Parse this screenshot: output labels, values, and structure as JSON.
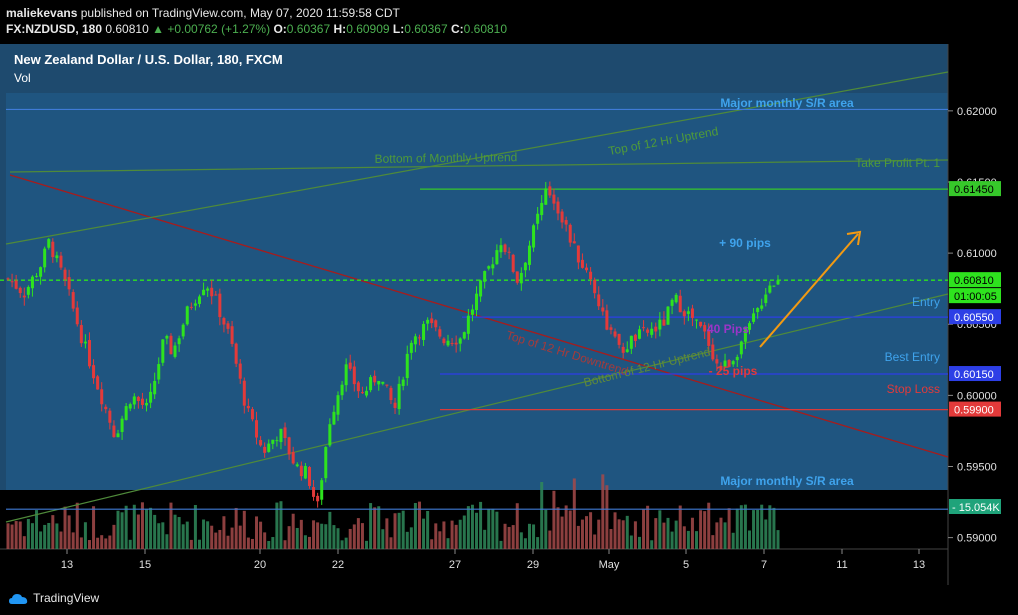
{
  "header": {
    "author": "maliekevans",
    "published_text": "published on TradingView.com, May 07, 2020 11:59:58 CDT",
    "symbol": "FX:NZDUSD, 180",
    "last": "0.60810",
    "change": "+0.00762 (+1.27%)",
    "o_label": "O:",
    "o_val": "0.60367",
    "h_label": "H:",
    "h_val": "0.60909",
    "l_label": "L:",
    "l_val": "0.60367",
    "c_label": "C:",
    "c_val": "0.60810"
  },
  "chart_title": "New Zealand Dollar / U.S. Dollar, 180, FXCM",
  "vol_label": "Vol",
  "footer": {
    "brand": "TradingView"
  },
  "colors": {
    "background": "#1e4a6e",
    "up": "#2ee31e",
    "down": "#e33a3a",
    "sr_line": "#3f7bd6",
    "support": "#4f8a3a",
    "downtrend": "#a61c1c",
    "arrow": "#f29a12"
  },
  "chart_data": {
    "type": "candlestick",
    "title": "New Zealand Dollar / U.S. Dollar, 180, FXCM",
    "y_ticks": [
      "0.62000",
      "0.61500",
      "0.61000",
      "0.60500",
      "0.60000",
      "0.59500",
      "0.59000"
    ],
    "ylim": [
      0.5892,
      0.6247
    ],
    "x_ticks": [
      "13",
      "15",
      "20",
      "22",
      "27",
      "29",
      "May",
      "5",
      "7",
      "11",
      "13"
    ],
    "price_tags": {
      "take_profit": "0.61450",
      "last": "0.60810",
      "countdown": "01:00:05",
      "entry": "0.60550",
      "best_entry": "0.60150",
      "stop_loss": "0.59900",
      "volume": "15.054K"
    },
    "annotations": {
      "major_sr_top": "Major monthly S/R area",
      "major_sr_bottom": "Major monthly S/R area",
      "top_uptrend": "Top of 12 Hr Uptrend",
      "bottom_monthly": "Bottom of Monthly Uptrend",
      "take_profit": "Take Profit Pt. 1",
      "plus90": "+ 90 pips",
      "entry": "Entry",
      "pips40": "40 Pips",
      "best_entry": "Best Entry",
      "minus25": "- 25 pips",
      "stop_loss": "Stop Loss",
      "top_downtrend": "Top of 12 Hr Downtrend",
      "bottom_uptrend": "Bottom of 12 Hr Uptrend"
    },
    "levels": {
      "major_sr_top": 0.6201,
      "major_sr_bottom": 0.592,
      "take_profit": 0.6145,
      "last": 0.6081,
      "entry": 0.6055,
      "best_entry": 0.6015,
      "stop_loss": 0.599
    },
    "close_path": [
      [
        0,
        0.6082
      ],
      [
        10,
        0.6072
      ],
      [
        20,
        0.6092
      ],
      [
        25,
        0.6108
      ],
      [
        35,
        0.6078
      ],
      [
        45,
        0.604
      ],
      [
        55,
        0.6005
      ],
      [
        65,
        0.5972
      ],
      [
        75,
        0.6
      ],
      [
        85,
        0.599
      ],
      [
        95,
        0.604
      ],
      [
        100,
        0.603
      ],
      [
        110,
        0.6062
      ],
      [
        120,
        0.608
      ],
      [
        125,
        0.607
      ],
      [
        135,
        0.604
      ],
      [
        145,
        0.599
      ],
      [
        155,
        0.596
      ],
      [
        165,
        0.5975
      ],
      [
        175,
        0.595
      ],
      [
        182,
        0.5945
      ],
      [
        188,
        0.592
      ],
      [
        195,
        0.598
      ],
      [
        205,
        0.602
      ],
      [
        215,
        0.6
      ],
      [
        225,
        0.6015
      ],
      [
        235,
        0.599
      ],
      [
        245,
        0.604
      ],
      [
        255,
        0.605
      ],
      [
        265,
        0.604
      ],
      [
        275,
        0.604
      ],
      [
        285,
        0.607
      ],
      [
        300,
        0.611
      ],
      [
        310,
        0.608
      ],
      [
        322,
        0.6125
      ],
      [
        328,
        0.6145
      ],
      [
        335,
        0.613
      ],
      [
        345,
        0.61
      ],
      [
        355,
        0.608
      ],
      [
        362,
        0.6055
      ],
      [
        372,
        0.603
      ],
      [
        380,
        0.604
      ],
      [
        390,
        0.6045
      ],
      [
        398,
        0.605
      ],
      [
        405,
        0.6068
      ],
      [
        415,
        0.6055
      ],
      [
        425,
        0.604
      ],
      [
        432,
        0.6018
      ],
      [
        440,
        0.6025
      ],
      [
        447,
        0.604
      ],
      [
        455,
        0.6058
      ],
      [
        462,
        0.6078
      ],
      [
        468,
        0.6081
      ]
    ],
    "volume_hint": "bottom pane histogram of red/green volume bars"
  }
}
